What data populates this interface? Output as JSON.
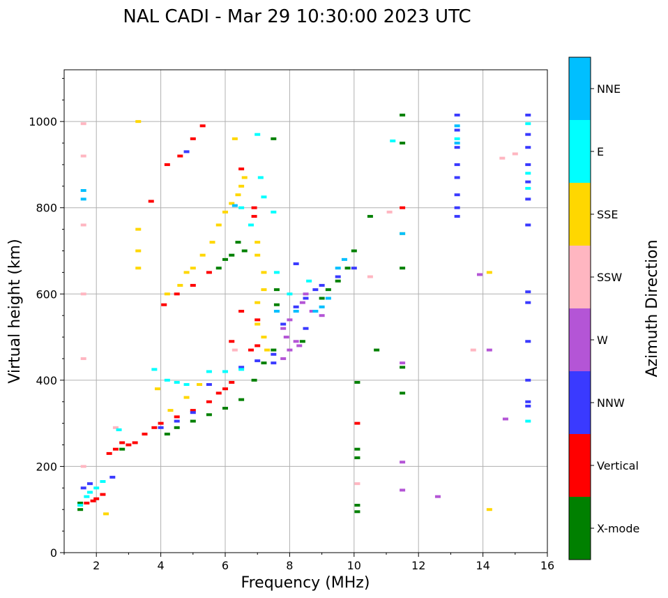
{
  "chart_data": {
    "type": "scatter",
    "title": "NAL CADI - Mar 29 10:30:00 2023 UTC",
    "xlabel": "Frequency (MHz)",
    "ylabel": "Virtual height (km)",
    "xlim": [
      1,
      16
    ],
    "ylim": [
      0,
      1120
    ],
    "xticks": [
      2,
      4,
      6,
      8,
      10,
      12,
      14,
      16
    ],
    "xtick_labels": [
      "2",
      "4",
      "6",
      "8",
      "10",
      "12",
      "14",
      "16"
    ],
    "yticks": [
      0,
      200,
      400,
      600,
      800,
      1000
    ],
    "ytick_labels": [
      "0",
      "200",
      "400",
      "600",
      "800",
      "1000"
    ],
    "grid": true,
    "colorbar": {
      "label": "Azimuth Direction",
      "categories": [
        {
          "name": "X-mode",
          "color": "#008000"
        },
        {
          "name": "Vertical",
          "color": "#ff0000"
        },
        {
          "name": "NNW",
          "color": "#3a3aff"
        },
        {
          "name": "W",
          "color": "#b455d6"
        },
        {
          "name": "SSW",
          "color": "#ffb6c1"
        },
        {
          "name": "SSE",
          "color": "#ffd700"
        },
        {
          "name": "E",
          "color": "#00ffff"
        },
        {
          "name": "NNE",
          "color": "#00bfff"
        }
      ]
    },
    "series": [
      {
        "name": "X-mode",
        "color": "#008000",
        "points": [
          [
            1.5,
            100
          ],
          [
            1.5,
            115
          ],
          [
            2.8,
            240
          ],
          [
            4.2,
            275
          ],
          [
            4.5,
            290
          ],
          [
            5.0,
            305
          ],
          [
            5.5,
            320
          ],
          [
            6.0,
            335
          ],
          [
            6.5,
            355
          ],
          [
            6.9,
            400
          ],
          [
            7.2,
            440
          ],
          [
            7.5,
            470
          ],
          [
            7.6,
            575
          ],
          [
            7.6,
            610
          ],
          [
            8.4,
            490
          ],
          [
            9.0,
            590
          ],
          [
            9.2,
            610
          ],
          [
            9.5,
            630
          ],
          [
            9.8,
            660
          ],
          [
            10.0,
            700
          ],
          [
            10.1,
            95
          ],
          [
            10.1,
            110
          ],
          [
            10.1,
            220
          ],
          [
            10.1,
            240
          ],
          [
            10.1,
            395
          ],
          [
            10.5,
            780
          ],
          [
            10.7,
            470
          ],
          [
            11.5,
            370
          ],
          [
            11.5,
            430
          ],
          [
            11.5,
            660
          ],
          [
            11.5,
            950
          ],
          [
            11.5,
            1015
          ],
          [
            6.4,
            720
          ],
          [
            6.6,
            700
          ],
          [
            5.8,
            660
          ],
          [
            6.0,
            680
          ],
          [
            6.2,
            690
          ],
          [
            7.5,
            960
          ]
        ]
      },
      {
        "name": "Vertical",
        "color": "#ff0000",
        "points": [
          [
            1.7,
            115
          ],
          [
            1.9,
            120
          ],
          [
            2.0,
            125
          ],
          [
            2.2,
            135
          ],
          [
            2.4,
            230
          ],
          [
            2.6,
            240
          ],
          [
            2.8,
            255
          ],
          [
            3.0,
            250
          ],
          [
            3.2,
            255
          ],
          [
            3.5,
            275
          ],
          [
            3.8,
            290
          ],
          [
            4.0,
            300
          ],
          [
            4.5,
            315
          ],
          [
            5.0,
            330
          ],
          [
            5.5,
            350
          ],
          [
            5.8,
            370
          ],
          [
            6.0,
            380
          ],
          [
            6.2,
            395
          ],
          [
            6.5,
            560
          ],
          [
            6.5,
            890
          ],
          [
            6.9,
            800
          ],
          [
            6.9,
            780
          ],
          [
            4.1,
            575
          ],
          [
            4.5,
            600
          ],
          [
            5.0,
            620
          ],
          [
            5.5,
            650
          ],
          [
            4.2,
            900
          ],
          [
            4.6,
            920
          ],
          [
            5.0,
            960
          ],
          [
            5.3,
            990
          ],
          [
            3.7,
            815
          ],
          [
            10.1,
            300
          ],
          [
            11.5,
            800
          ],
          [
            6.2,
            490
          ],
          [
            6.8,
            470
          ],
          [
            7.0,
            480
          ],
          [
            7.0,
            540
          ]
        ]
      },
      {
        "name": "NNW",
        "color": "#3a3aff",
        "points": [
          [
            1.6,
            150
          ],
          [
            1.8,
            160
          ],
          [
            2.5,
            175
          ],
          [
            4.0,
            290
          ],
          [
            4.5,
            305
          ],
          [
            5.0,
            325
          ],
          [
            5.5,
            390
          ],
          [
            6.0,
            420
          ],
          [
            6.5,
            430
          ],
          [
            7.0,
            445
          ],
          [
            7.5,
            460
          ],
          [
            7.8,
            530
          ],
          [
            8.2,
            570
          ],
          [
            8.5,
            590
          ],
          [
            8.8,
            610
          ],
          [
            9.0,
            620
          ],
          [
            9.5,
            640
          ],
          [
            10.0,
            660
          ],
          [
            8.2,
            670
          ],
          [
            4.8,
            930
          ],
          [
            13.2,
            780
          ],
          [
            13.2,
            800
          ],
          [
            13.2,
            830
          ],
          [
            13.2,
            870
          ],
          [
            13.2,
            900
          ],
          [
            13.2,
            940
          ],
          [
            13.2,
            980
          ],
          [
            13.2,
            1015
          ],
          [
            15.4,
            1015
          ],
          [
            15.4,
            970
          ],
          [
            15.4,
            940
          ],
          [
            15.4,
            900
          ],
          [
            15.4,
            860
          ],
          [
            15.4,
            820
          ],
          [
            15.4,
            760
          ],
          [
            15.4,
            605
          ],
          [
            15.4,
            580
          ],
          [
            15.4,
            490
          ],
          [
            15.4,
            400
          ],
          [
            15.4,
            350
          ],
          [
            15.4,
            340
          ],
          [
            7.5,
            440
          ],
          [
            8.5,
            520
          ]
        ]
      },
      {
        "name": "W",
        "color": "#b455d6",
        "points": [
          [
            7.8,
            450
          ],
          [
            7.9,
            500
          ],
          [
            8.0,
            540
          ],
          [
            8.3,
            480
          ],
          [
            8.4,
            580
          ],
          [
            8.5,
            600
          ],
          [
            8.7,
            560
          ],
          [
            8.2,
            490
          ],
          [
            7.8,
            520
          ],
          [
            8.0,
            470
          ],
          [
            9.0,
            550
          ],
          [
            11.5,
            440
          ],
          [
            11.5,
            210
          ],
          [
            11.5,
            145
          ],
          [
            12.6,
            130
          ],
          [
            13.9,
            645
          ],
          [
            14.2,
            470
          ],
          [
            14.7,
            310
          ]
        ]
      },
      {
        "name": "SSW",
        "color": "#ffb6c1",
        "points": [
          [
            1.6,
            995
          ],
          [
            1.6,
            920
          ],
          [
            1.6,
            760
          ],
          [
            1.6,
            600
          ],
          [
            1.6,
            450
          ],
          [
            1.6,
            200
          ],
          [
            2.6,
            290
          ],
          [
            11.1,
            790
          ],
          [
            13.7,
            470
          ],
          [
            14.6,
            915
          ],
          [
            15.0,
            925
          ],
          [
            10.5,
            640
          ],
          [
            10.1,
            160
          ],
          [
            6.3,
            470
          ]
        ]
      },
      {
        "name": "SSE",
        "color": "#ffd700",
        "points": [
          [
            2.3,
            90
          ],
          [
            3.3,
            1000
          ],
          [
            3.3,
            750
          ],
          [
            3.3,
            700
          ],
          [
            3.3,
            660
          ],
          [
            3.9,
            380
          ],
          [
            4.3,
            330
          ],
          [
            4.8,
            360
          ],
          [
            5.2,
            390
          ],
          [
            4.2,
            600
          ],
          [
            4.6,
            620
          ],
          [
            4.8,
            650
          ],
          [
            5.0,
            660
          ],
          [
            5.3,
            690
          ],
          [
            5.6,
            720
          ],
          [
            5.8,
            760
          ],
          [
            6.0,
            790
          ],
          [
            6.2,
            810
          ],
          [
            6.4,
            830
          ],
          [
            6.5,
            850
          ],
          [
            6.6,
            870
          ],
          [
            6.3,
            960
          ],
          [
            7.0,
            720
          ],
          [
            7.0,
            690
          ],
          [
            7.2,
            650
          ],
          [
            7.2,
            610
          ],
          [
            7.0,
            580
          ],
          [
            7.0,
            530
          ],
          [
            7.2,
            500
          ],
          [
            7.3,
            470
          ],
          [
            14.2,
            100
          ],
          [
            14.2,
            650
          ],
          [
            11.5,
            740
          ]
        ]
      },
      {
        "name": "E",
        "color": "#00ffff",
        "points": [
          [
            1.5,
            110
          ],
          [
            1.7,
            130
          ],
          [
            1.8,
            140
          ],
          [
            2.0,
            150
          ],
          [
            2.2,
            165
          ],
          [
            2.7,
            285
          ],
          [
            4.2,
            400
          ],
          [
            4.5,
            395
          ],
          [
            4.8,
            390
          ],
          [
            5.5,
            420
          ],
          [
            6.0,
            420
          ],
          [
            6.5,
            425
          ],
          [
            6.5,
            800
          ],
          [
            6.8,
            760
          ],
          [
            7.0,
            970
          ],
          [
            7.1,
            870
          ],
          [
            7.2,
            825
          ],
          [
            7.5,
            790
          ],
          [
            7.6,
            650
          ],
          [
            8.0,
            600
          ],
          [
            8.6,
            630
          ],
          [
            11.2,
            955
          ],
          [
            15.4,
            995
          ],
          [
            15.4,
            880
          ],
          [
            15.4,
            845
          ],
          [
            15.4,
            305
          ],
          [
            3.8,
            425
          ],
          [
            13.2,
            960
          ]
        ]
      },
      {
        "name": "NNE",
        "color": "#00bfff",
        "points": [
          [
            8.8,
            560
          ],
          [
            9.0,
            570
          ],
          [
            9.2,
            590
          ],
          [
            9.5,
            660
          ],
          [
            9.7,
            680
          ],
          [
            8.2,
            560
          ],
          [
            7.6,
            560
          ],
          [
            6.3,
            805
          ],
          [
            13.2,
            990
          ],
          [
            13.2,
            950
          ],
          [
            11.5,
            740
          ],
          [
            1.6,
            840
          ],
          [
            1.6,
            820
          ]
        ]
      }
    ]
  }
}
